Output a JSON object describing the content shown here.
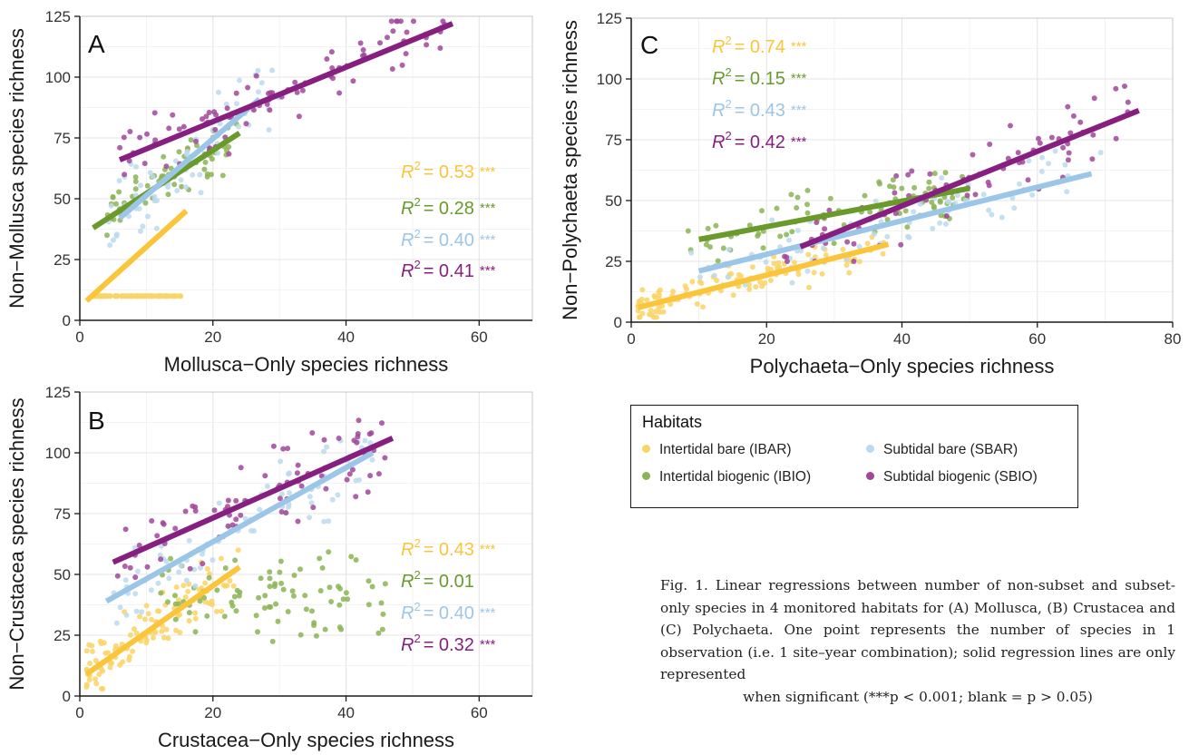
{
  "habitats": {
    "legend_title": "Habitats",
    "items": [
      {
        "key": "IBAR",
        "label": "Intertidal bare (IBAR)",
        "point_color": "#f9d466",
        "line_color": "#fac53a"
      },
      {
        "key": "IBIO",
        "label": "Intertidal biogenic (IBIO)",
        "point_color": "#8bb455",
        "line_color": "#6a9a2b"
      },
      {
        "key": "SBAR",
        "label": "Subtidal bare (SBAR)",
        "point_color": "#bcd9ef",
        "line_color": "#9cc6e8"
      },
      {
        "key": "SBIO",
        "label": "Subtidal biogenic (SBIO)",
        "point_color": "#a0479a",
        "line_color": "#861f80"
      }
    ]
  },
  "chart_data": [
    {
      "panel": "A",
      "type": "scatter",
      "xlabel": "Mollusca−Only species richness",
      "ylabel": "Non−Mollusca species richness",
      "xlim": [
        0,
        68
      ],
      "ylim": [
        0,
        125
      ],
      "xticks": [
        0,
        20,
        40,
        60
      ],
      "yticks": [
        0,
        25,
        50,
        75,
        100,
        125
      ],
      "series": [
        {
          "key": "IBAR",
          "r2": "0.53",
          "stars": "***",
          "line": [
            [
              1,
              8
            ],
            [
              16,
              45
            ]
          ],
          "cluster": [
            2,
            16,
            10,
            5,
            30,
            8,
            110
          ]
        },
        {
          "key": "IBIO",
          "r2": "0.28",
          "stars": "***",
          "line": [
            [
              2,
              38
            ],
            [
              24,
              77
            ]
          ],
          "cluster": [
            4,
            24,
            35,
            85,
            55,
            10,
            70
          ]
        },
        {
          "key": "SBAR",
          "r2": "0.40",
          "stars": "***",
          "line": [
            [
              6,
              42
            ],
            [
              27,
              91
            ]
          ],
          "cluster": [
            4,
            30,
            25,
            115,
            65,
            14,
            70
          ]
        },
        {
          "key": "SBIO",
          "r2": "0.41",
          "stars": "***",
          "line": [
            [
              6,
              66
            ],
            [
              56,
              122
            ]
          ],
          "cluster": [
            6,
            56,
            60,
            123,
            85,
            11,
            90
          ]
        }
      ]
    },
    {
      "panel": "B",
      "type": "scatter",
      "xlabel": "Crustacea−Only species richness",
      "ylabel": "Non−Crustacea species richness",
      "xlim": [
        0,
        68
      ],
      "ylim": [
        0,
        125
      ],
      "xticks": [
        0,
        20,
        40,
        60
      ],
      "yticks": [
        0,
        25,
        50,
        75,
        100,
        125
      ],
      "series": [
        {
          "key": "IBAR",
          "r2": "0.43",
          "stars": "***",
          "line": [
            [
              1,
              9
            ],
            [
              24,
              53
            ]
          ],
          "cluster": [
            1,
            24,
            3,
            60,
            25,
            10,
            110
          ]
        },
        {
          "key": "IBIO",
          "r2": "0.01",
          "stars": "",
          "line": null,
          "cluster": [
            12,
            46,
            14,
            80,
            40,
            14,
            90
          ]
        },
        {
          "key": "SBAR",
          "r2": "0.40",
          "stars": "***",
          "line": [
            [
              4,
              39
            ],
            [
              44,
              100
            ]
          ],
          "cluster": [
            4,
            44,
            30,
            105,
            65,
            13,
            80
          ]
        },
        {
          "key": "SBIO",
          "r2": "0.32",
          "stars": "***",
          "line": [
            [
              5,
              55
            ],
            [
              47,
              106
            ]
          ],
          "cluster": [
            5,
            47,
            40,
            114,
            75,
            14,
            80
          ]
        }
      ]
    },
    {
      "panel": "C",
      "type": "scatter",
      "xlabel": "Polychaeta−Only species richness",
      "ylabel": "Non−Polychaeta species richness",
      "xlim": [
        0,
        80
      ],
      "ylim": [
        0,
        125
      ],
      "xticks": [
        0,
        20,
        40,
        60,
        80
      ],
      "yticks": [
        0,
        25,
        50,
        75,
        100,
        125
      ],
      "series": [
        {
          "key": "IBAR",
          "r2": "0.74",
          "stars": "***",
          "line": [
            [
              1,
              6
            ],
            [
              38,
              32
            ]
          ],
          "cluster": [
            1,
            38,
            2,
            35,
            12,
            6,
            110
          ]
        },
        {
          "key": "IBIO",
          "r2": "0.15",
          "stars": "***",
          "line": [
            [
              10,
              34
            ],
            [
              50,
              55
            ]
          ],
          "cluster": [
            8,
            50,
            20,
            62,
            42,
            11,
            90
          ]
        },
        {
          "key": "SBAR",
          "r2": "0.43",
          "stars": "***",
          "line": [
            [
              10,
              21
            ],
            [
              68,
              61
            ]
          ],
          "cluster": [
            8,
            70,
            15,
            75,
            40,
            12,
            80
          ]
        },
        {
          "key": "SBIO",
          "r2": "0.42",
          "stars": "***",
          "line": [
            [
              25,
              31
            ],
            [
              75,
              87
            ]
          ],
          "cluster": [
            22,
            74,
            25,
            97,
            60,
            12,
            80
          ]
        }
      ]
    }
  ],
  "caption": {
    "text": "Fig. 1. Linear regressions between number of non-subset and subset-only species in 4 monitored habitats for (A) Mollusca, (B) Crustacea and (C) Polychaeta. One point represents the number of species in 1 observation (i.e. 1 site–year combination); solid regression lines are only represented",
    "last_line": "when significant (***p < 0.001; blank = p > 0.05)"
  }
}
